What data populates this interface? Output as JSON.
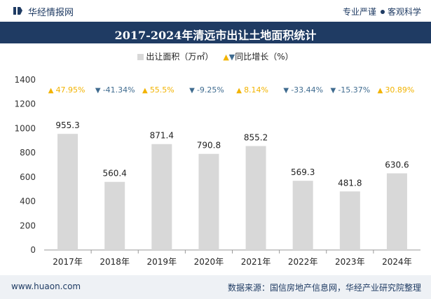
{
  "header": {
    "site_name": "华经情报网",
    "slogan_left": "专业严谨",
    "slogan_right": "客观科学"
  },
  "footer": {
    "url": "www.huaon.com",
    "source": "数据来源：国信房地产信息网，华经产业研究院整理"
  },
  "colors": {
    "bar": "#d8d8d8",
    "up": "#f2b300",
    "down": "#3f6b8f",
    "brand": "#1f3b63"
  },
  "chart_data": {
    "type": "bar",
    "title": "2017-2024年清远市出让土地面积统计",
    "legend": {
      "bar_label": "出让面积（万㎡）",
      "growth_label": "同比增长（%）"
    },
    "categories": [
      "2017年",
      "2018年",
      "2019年",
      "2020年",
      "2021年",
      "2022年",
      "2023年",
      "2024年"
    ],
    "series": [
      {
        "name": "出让面积（万㎡）",
        "values": [
          955.3,
          560.4,
          871.4,
          790.8,
          855.2,
          569.3,
          481.8,
          630.6
        ]
      }
    ],
    "growth": {
      "name": "同比增长（%）",
      "values": [
        47.95,
        -41.34,
        55.5,
        -9.25,
        8.14,
        -33.44,
        -15.37,
        30.89
      ],
      "labels": [
        "47.95%",
        "-41.34%",
        "55.5%",
        "-9.25%",
        "8.14%",
        "-33.44%",
        "-15.37%",
        "30.89%"
      ]
    },
    "ylim": [
      0,
      1400
    ],
    "yticks": [
      0,
      200,
      400,
      600,
      800,
      1000,
      1200,
      1400
    ],
    "grid": false
  }
}
